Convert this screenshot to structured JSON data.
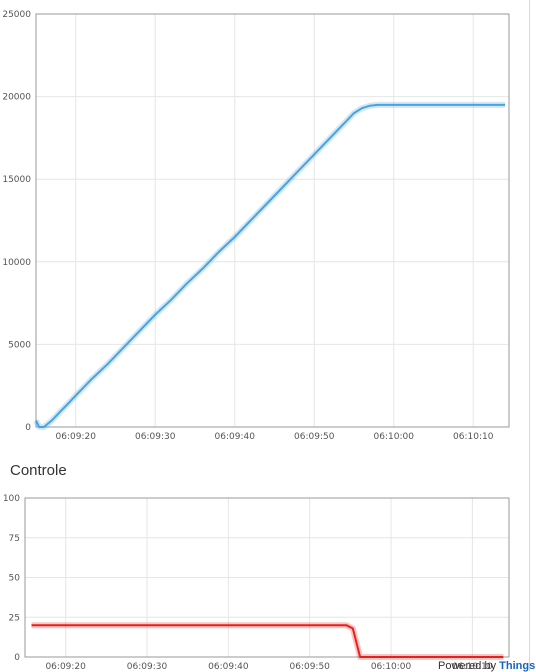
{
  "sections": {
    "controle_title": "Controle"
  },
  "footer": {
    "powered_prefix": "Powered by",
    "powered_link": "Thingsb"
  },
  "chart_data": [
    {
      "type": "line",
      "title": "",
      "xlabel": "",
      "ylabel": "",
      "x_ticks": [
        "06:09:20",
        "06:09:30",
        "06:09:40",
        "06:09:50",
        "06:10:00",
        "06:10:10"
      ],
      "x_tick_seconds": [
        20,
        30,
        40,
        50,
        60,
        70
      ],
      "xlim_seconds": [
        15,
        74.5
      ],
      "y_ticks": [
        "0",
        "5000",
        "10000",
        "15000",
        "20000",
        "25000"
      ],
      "ylim": [
        0,
        25000
      ],
      "grid": true,
      "legend": "none",
      "series": [
        {
          "color": "#4aa3df",
          "x_seconds": [
            15,
            15.4,
            16,
            17,
            18,
            19,
            20,
            22,
            24,
            26,
            28,
            30,
            32,
            34,
            36,
            38,
            40,
            42,
            44,
            46,
            48,
            50,
            52,
            54,
            55,
            56,
            57,
            58,
            59,
            60,
            62,
            64,
            66,
            68,
            70,
            72,
            74
          ],
          "values": [
            400,
            0,
            0,
            400,
            900,
            1400,
            1900,
            2900,
            3800,
            4800,
            5800,
            6800,
            7700,
            8700,
            9600,
            10600,
            11500,
            12500,
            13500,
            14500,
            15500,
            16500,
            17500,
            18500,
            19000,
            19300,
            19450,
            19500,
            19500,
            19500,
            19500,
            19500,
            19500,
            19500,
            19500,
            19500,
            19500
          ]
        }
      ]
    },
    {
      "type": "line",
      "title": "Controle",
      "xlabel": "",
      "ylabel": "",
      "x_ticks": [
        "06:09:20",
        "06:09:30",
        "06:09:40",
        "06:09:50",
        "06:10:00",
        "06:10:10"
      ],
      "x_tick_seconds": [
        20,
        30,
        40,
        50,
        60,
        70
      ],
      "xlim_seconds": [
        15,
        74.5
      ],
      "y_ticks": [
        "0",
        "25",
        "50",
        "75",
        "100"
      ],
      "ylim": [
        0,
        100
      ],
      "grid": true,
      "legend": "none",
      "series": [
        {
          "color": "#e8201c",
          "x_seconds": [
            15.8,
            54.5,
            55.3,
            56.2,
            73.8
          ],
          "values": [
            20,
            20,
            18,
            0,
            0
          ]
        }
      ]
    }
  ]
}
